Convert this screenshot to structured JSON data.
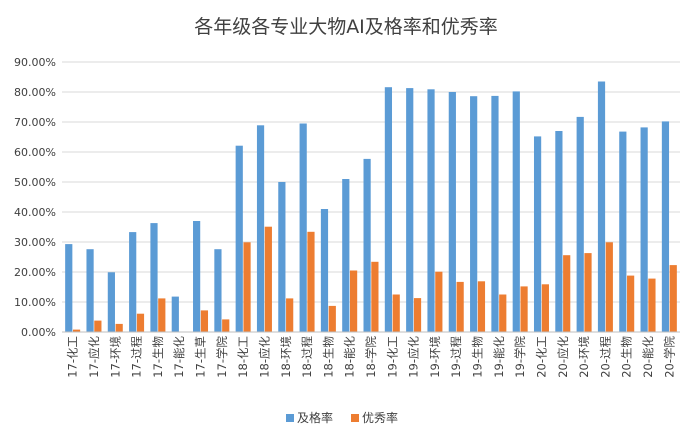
{
  "chart_data": {
    "type": "bar",
    "title": "各年级各专业大物AI及格率和优秀率",
    "xlabel": "",
    "ylabel": "",
    "ylim": [
      0,
      90
    ],
    "yticks": [
      "0.00%",
      "10.00%",
      "20.00%",
      "30.00%",
      "40.00%",
      "50.00%",
      "60.00%",
      "70.00%",
      "80.00%",
      "90.00%"
    ],
    "grid": true,
    "legend_position": "bottom",
    "categories": [
      "17-化工",
      "17-应化",
      "17-环境",
      "17-过程",
      "17-生物",
      "17-能化",
      "17-生草",
      "17-学院",
      "18-化工",
      "18-应化",
      "18-环境",
      "18-过程",
      "18-生物",
      "18-能化",
      "18-学院",
      "19-化工",
      "19-应化",
      "19-环境",
      "19-过程",
      "19-生物",
      "19-能化",
      "19-学院",
      "20-化工",
      "20-应化",
      "20-环境",
      "20-过程",
      "20-生物",
      "20-能化",
      "20-学院"
    ],
    "series": [
      {
        "name": "及格率",
        "color": "#5b9bd5",
        "values": [
          29.3,
          27.6,
          19.9,
          33.3,
          36.3,
          11.8,
          37.0,
          27.6,
          62.1,
          68.9,
          50.0,
          69.5,
          41.0,
          51.0,
          57.7,
          81.6,
          81.3,
          80.9,
          80.0,
          78.6,
          78.7,
          80.2,
          65.2,
          67.0,
          71.7,
          83.5,
          66.8,
          68.2,
          70.2
        ]
      },
      {
        "name": "优秀率",
        "color": "#ed7d31",
        "values": [
          0.8,
          3.8,
          2.7,
          6.1,
          11.2,
          0,
          7.2,
          4.2,
          29.9,
          35.1,
          11.2,
          33.4,
          8.7,
          20.5,
          23.4,
          12.5,
          11.3,
          20.1,
          16.7,
          16.9,
          12.5,
          15.2,
          15.9,
          25.6,
          26.3,
          29.9,
          18.8,
          17.8,
          22.3
        ]
      }
    ]
  }
}
